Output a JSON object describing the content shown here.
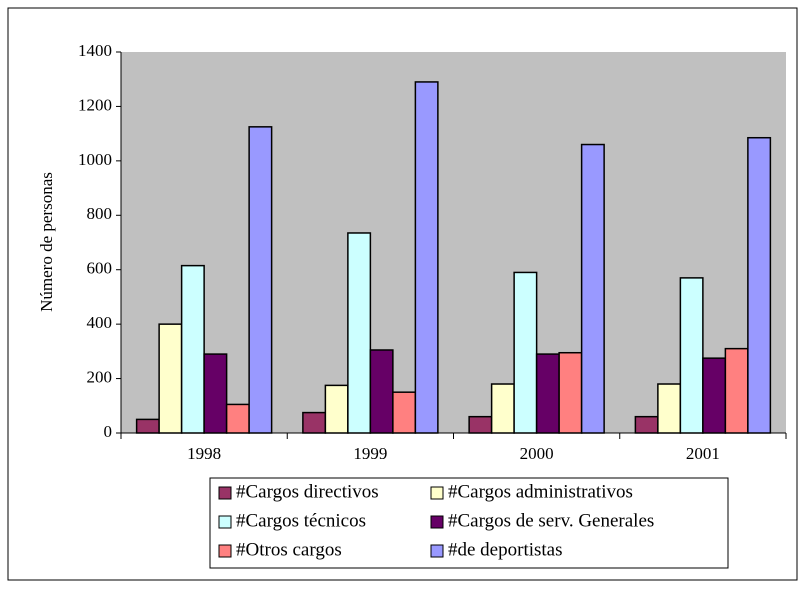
{
  "chart_data": {
    "type": "bar",
    "y_label": "Número de personas",
    "categories": [
      "1998",
      "1999",
      "2000",
      "2001"
    ],
    "series": [
      {
        "name": "#Cargos directivos",
        "color": "#993366",
        "values": [
          50,
          75,
          60,
          60
        ]
      },
      {
        "name": "#Cargos administrativos",
        "color": "#ffffcc",
        "values": [
          400,
          175,
          180,
          180
        ]
      },
      {
        "name": "#Cargos técnicos",
        "color": "#ccffff",
        "values": [
          615,
          735,
          590,
          570
        ]
      },
      {
        "name": "#Cargos de serv. Generales",
        "color": "#660066",
        "values": [
          290,
          305,
          290,
          275
        ]
      },
      {
        "name": "#Otros cargos",
        "color": "#ff8080",
        "values": [
          105,
          150,
          295,
          310
        ]
      },
      {
        "name": "#de deportistas",
        "color": "#9999ff",
        "values": [
          1125,
          1290,
          1060,
          1085
        ]
      }
    ],
    "ylim": [
      0,
      1400
    ],
    "yticks": [
      0,
      200,
      400,
      600,
      800,
      1000,
      1200,
      1400
    ],
    "plot_background": "#c0c0c0"
  }
}
